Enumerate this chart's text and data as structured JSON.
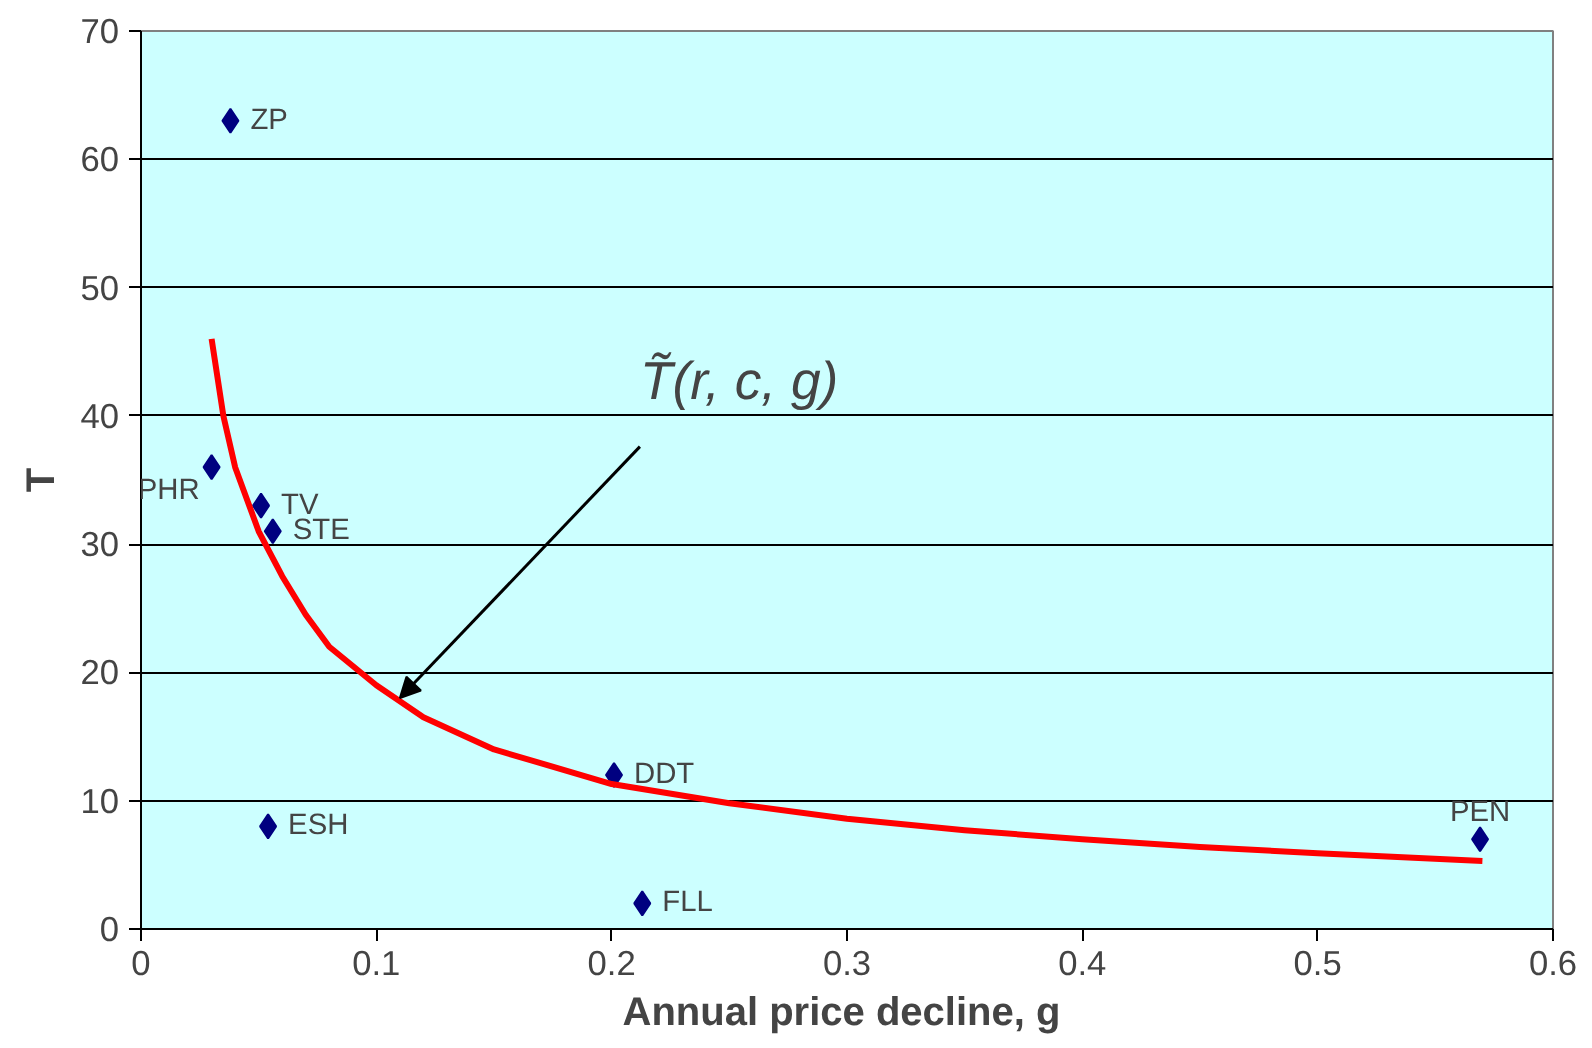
{
  "chart_data": {
    "type": "scatter",
    "xlabel": "Annual price decline,  g",
    "ylabel": "T",
    "xlim": [
      0,
      0.6
    ],
    "xticks": [
      0,
      0.1,
      0.2,
      0.3,
      0.4,
      0.5,
      0.6
    ],
    "ylim": [
      0,
      70
    ],
    "yticks": [
      0,
      10,
      20,
      30,
      40,
      50,
      60,
      70
    ],
    "grid": "y",
    "marker": "diamond",
    "series": [
      {
        "name": "ZP",
        "color": "#000080",
        "x": [
          0.038
        ],
        "values": [
          63
        ]
      },
      {
        "name": "PHR",
        "color": "#000080",
        "x": [
          0.03
        ],
        "values": [
          36
        ]
      },
      {
        "name": "TV",
        "color": "#000080",
        "x": [
          0.051
        ],
        "values": [
          33
        ]
      },
      {
        "name": "STE",
        "color": "#000080",
        "x": [
          0.056
        ],
        "values": [
          31
        ]
      },
      {
        "name": "ESH",
        "color": "#000080",
        "x": [
          0.054
        ],
        "values": [
          8
        ]
      },
      {
        "name": "DDT",
        "color": "#000080",
        "x": [
          0.201
        ],
        "values": [
          12
        ]
      },
      {
        "name": "FLL",
        "color": "#000080",
        "x": [
          0.213
        ],
        "values": [
          2
        ]
      },
      {
        "name": "PEN",
        "color": "#000080",
        "x": [
          0.569
        ],
        "values": [
          7
        ]
      },
      {
        "type": "line",
        "color": "#ff0000",
        "marker": "none",
        "x": [
          0.03,
          0.035,
          0.04,
          0.05,
          0.06,
          0.07,
          0.08,
          0.1,
          0.12,
          0.15,
          0.2,
          0.25,
          0.3,
          0.35,
          0.4,
          0.45,
          0.5,
          0.57
        ],
        "values": [
          46,
          40,
          36,
          31,
          27.5,
          24.5,
          22,
          19,
          16.5,
          14,
          11.3,
          9.8,
          8.6,
          7.7,
          7,
          6.4,
          5.9,
          5.3
        ]
      }
    ],
    "annotations": [
      {
        "text": "T̃(r, c, g)",
        "x": 0.11,
        "y": 18
      }
    ]
  }
}
